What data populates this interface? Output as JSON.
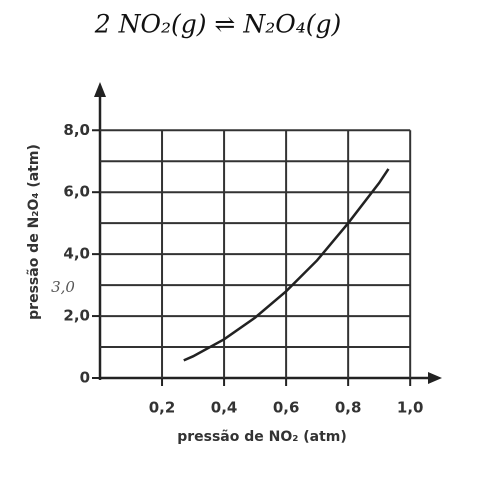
{
  "chart_data": {
    "type": "line",
    "title": "2 NO₂(g) ⇌ N₂O₄(g)",
    "x_label": "pressão de NO₂ (atm)",
    "y_label": "pressão de N₂O₄ (atm)",
    "annotation": "3,0",
    "x": [
      0.27,
      0.3,
      0.4,
      0.5,
      0.6,
      0.7,
      0.8,
      0.9,
      0.93
    ],
    "values": [
      0.57,
      0.7,
      1.25,
      1.95,
      2.8,
      3.8,
      5.0,
      6.3,
      6.75
    ],
    "color": "#222222",
    "xlim": [
      0,
      1.08
    ],
    "ylim": [
      0,
      9.3
    ],
    "xticks": [
      {
        "value": 0.2,
        "label": "0,2"
      },
      {
        "value": 0.4,
        "label": "0,4"
      },
      {
        "value": 0.6,
        "label": "0,6"
      },
      {
        "value": 0.8,
        "label": "0,8"
      },
      {
        "value": 1.0,
        "label": "1,0"
      }
    ],
    "yticks": [
      0,
      {
        "value": 2,
        "label": "2,0"
      },
      {
        "value": 4,
        "label": "4,0"
      },
      {
        "value": 6,
        "label": "6,0"
      },
      {
        "value": 8,
        "label": "8,0"
      }
    ],
    "minor_yticks": [
      1,
      3,
      5,
      7
    ],
    "grid": true
  }
}
